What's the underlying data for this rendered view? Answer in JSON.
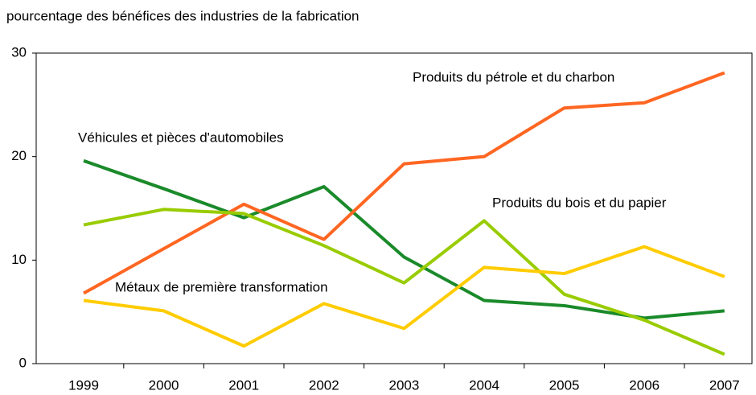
{
  "chart_data": {
    "type": "line",
    "title": "pourcentage des bénéfices des industries de la fabrication",
    "categories": [
      "1999",
      "2000",
      "2001",
      "2002",
      "2003",
      "2004",
      "2005",
      "2006",
      "2007"
    ],
    "series": [
      {
        "name": "Véhicules et pièces d'automobiles",
        "color": "#1a8a2a",
        "values": [
          19.6,
          16.9,
          14.1,
          17.1,
          10.3,
          6.1,
          5.6,
          4.4,
          5.1
        ]
      },
      {
        "name": "Produits du pétrole et du charbon",
        "color": "#ff6622",
        "values": [
          6.8,
          11.1,
          15.4,
          12.0,
          19.3,
          20.0,
          24.7,
          25.2,
          28.1
        ]
      },
      {
        "name": "Produits du bois et du papier",
        "color": "#99cc00",
        "values": [
          13.4,
          14.9,
          14.5,
          11.4,
          7.8,
          13.8,
          6.7,
          4.2,
          0.9
        ]
      },
      {
        "name": "Métaux de première transformation",
        "color": "#ffcc00",
        "values": [
          6.1,
          5.1,
          1.7,
          5.8,
          3.4,
          9.3,
          8.7,
          11.3,
          8.4
        ]
      }
    ],
    "ylim": [
      0,
      30
    ],
    "yticks": [
      0,
      10,
      20,
      30
    ],
    "grid": false
  }
}
